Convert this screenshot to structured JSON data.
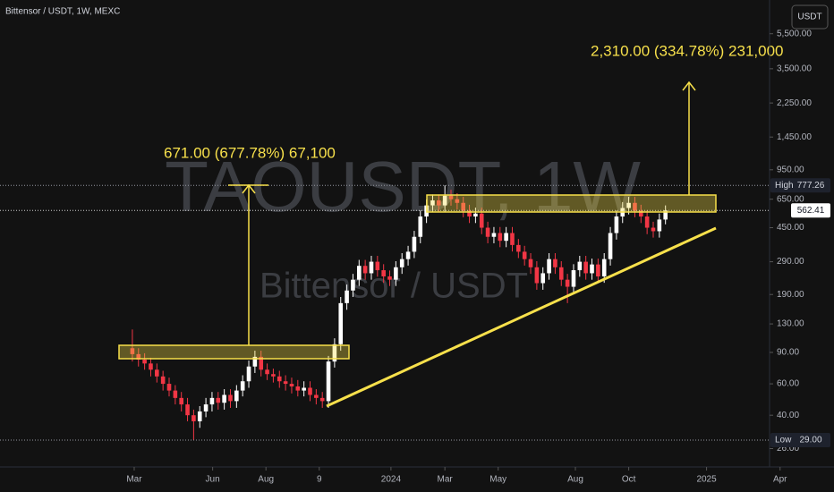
{
  "chart_data": {
    "type": "candlestick",
    "title": "Bittensor / USDT, 1W, MEXC",
    "watermark": "TAOUSDT, 1W",
    "watermark_subtitle": "Bittensor / USDT",
    "currency_button": "USDT",
    "up_color": "#ffffff",
    "down_color": "#f23645",
    "log_scale": true,
    "grid": false,
    "annotations": [
      "671.00 (677.78%) 67,100",
      "2,310.00 (334.78%) 231,000"
    ],
    "open": [
      95,
      88,
      82,
      78,
      72,
      66,
      60,
      55,
      50,
      46,
      40,
      37,
      42,
      46,
      50,
      47,
      52,
      48,
      55,
      62,
      75,
      85,
      72,
      68,
      66,
      62,
      60,
      58,
      55,
      57,
      52,
      50,
      48,
      80,
      100,
      170,
      200,
      230,
      275,
      250,
      290,
      260,
      240,
      230,
      270,
      300,
      330,
      400,
      520,
      600,
      640,
      600,
      680,
      650,
      620,
      560,
      520,
      540,
      450,
      400,
      420,
      380,
      420,
      360,
      330,
      300,
      270,
      220,
      250,
      300,
      270,
      230,
      210,
      260,
      290,
      250,
      280,
      240,
      300,
      420,
      520,
      580,
      620,
      560,
      520,
      450,
      430,
      500
    ],
    "high": [
      121,
      95,
      89,
      84,
      78,
      71,
      65,
      59,
      54,
      50,
      43,
      45,
      50,
      54,
      54,
      56,
      56,
      59,
      67,
      81,
      92,
      92,
      78,
      73,
      71,
      67,
      65,
      63,
      62,
      62,
      56,
      54,
      86,
      108,
      184,
      216,
      248,
      297,
      297,
      313,
      313,
      281,
      259,
      292,
      324,
      356,
      432,
      562,
      648,
      691,
      691,
      777.26,
      734,
      702,
      670,
      605,
      583,
      583,
      486,
      454,
      454,
      454,
      454,
      389,
      356,
      324,
      292,
      270,
      324,
      324,
      292,
      248,
      281,
      313,
      313,
      302,
      302,
      324,
      454,
      562,
      626,
      670,
      670,
      605,
      562,
      486,
      540,
      600
    ],
    "low": [
      80,
      75,
      72,
      66,
      61,
      55,
      51,
      46,
      42,
      37,
      29,
      34,
      39,
      42,
      43,
      43,
      44,
      44,
      51,
      57,
      69,
      66,
      63,
      61,
      57,
      55,
      53,
      51,
      51,
      48,
      46,
      44,
      44,
      74,
      92,
      156,
      184,
      212,
      230,
      230,
      239,
      221,
      212,
      212,
      248,
      276,
      304,
      368,
      478,
      552,
      552,
      552,
      598,
      570,
      515,
      478,
      478,
      414,
      368,
      368,
      350,
      350,
      331,
      304,
      276,
      248,
      202,
      202,
      230,
      248,
      212,
      170,
      193,
      239,
      230,
      230,
      221,
      221,
      276,
      386,
      478,
      534,
      515,
      478,
      414,
      396,
      396,
      470
    ],
    "close": [
      88,
      82,
      78,
      72,
      66,
      60,
      55,
      50,
      46,
      40,
      37,
      42,
      46,
      50,
      47,
      52,
      48,
      55,
      62,
      75,
      85,
      72,
      68,
      66,
      62,
      60,
      58,
      55,
      57,
      52,
      50,
      48,
      80,
      100,
      170,
      200,
      230,
      275,
      250,
      290,
      260,
      240,
      230,
      270,
      300,
      330,
      400,
      520,
      600,
      640,
      600,
      680,
      650,
      620,
      560,
      520,
      540,
      450,
      400,
      420,
      380,
      420,
      360,
      330,
      300,
      270,
      220,
      250,
      300,
      270,
      230,
      210,
      260,
      290,
      250,
      280,
      240,
      300,
      420,
      520,
      580,
      620,
      560,
      520,
      450,
      430,
      500,
      562.41
    ],
    "price_labels": [
      {
        "name": "High",
        "value": 777.26
      },
      {
        "name": "Low",
        "value": 29,
        "label": "29.00"
      }
    ],
    "xlim": [
      -21.6,
      114.5
    ],
    "xticks": [
      {
        "value": 0.3,
        "label": "Mar"
      },
      {
        "value": 13.1,
        "label": "Jun"
      },
      {
        "value": 21.8,
        "label": "Aug"
      },
      {
        "value": 30.5,
        "label": "9"
      },
      {
        "value": 42.2,
        "label": "2024"
      },
      {
        "value": 51,
        "label": "Mar"
      },
      {
        "value": 59.7,
        "label": "May"
      },
      {
        "value": 72.3,
        "label": "Aug"
      },
      {
        "value": 81,
        "label": "Oct"
      },
      {
        "value": 93.7,
        "label": "2025"
      },
      {
        "value": 105.7,
        "label": "Apr"
      }
    ],
    "ylim": [
      21,
      8500
    ],
    "yticks": [
      {
        "value": 26,
        "label": "26.00"
      },
      {
        "value": 40,
        "label": "40.00"
      },
      {
        "value": 60,
        "label": "60.00"
      },
      {
        "value": 90,
        "label": "90.00"
      },
      {
        "value": 130,
        "label": "130.00"
      },
      {
        "value": 190,
        "label": "190.00"
      },
      {
        "value": 290,
        "label": "290.00"
      },
      {
        "value": 450,
        "label": "450.00"
      },
      {
        "value": 650,
        "label": "650.00"
      },
      {
        "value": 950,
        "label": "950.00"
      },
      {
        "value": 1450,
        "label": "1,450.00"
      },
      {
        "value": 2250,
        "label": "2,250.00"
      },
      {
        "value": 3500,
        "label": "3,500.00"
      },
      {
        "value": 5500,
        "label": "5,500.00"
      }
    ]
  }
}
